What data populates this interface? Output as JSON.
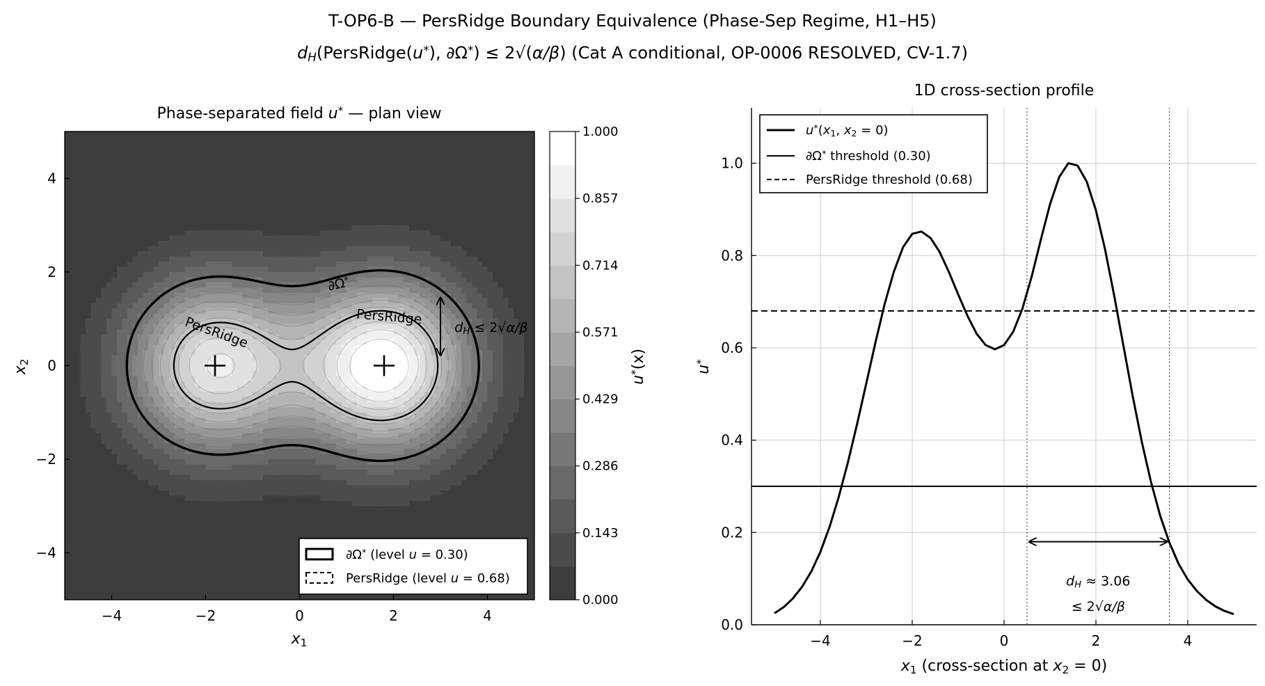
{
  "figure": {
    "title_line1": "T-OP6-B  —  PersRidge Boundary Equivalence (Phase-Sep Regime, H1–H5)",
    "title_line2": "dH(PersRidge(u*), ∂Ω*) ≤ 2√(α/β)   (Cat A conditional, OP-0006 RESOLVED, CV-1.7)"
  },
  "chart_data": [
    {
      "type": "heatmap",
      "title": "Phase-separated field u* — plan view",
      "xlabel": "x1",
      "ylabel": "x2",
      "xlim": [
        -5,
        5
      ],
      "ylim": [
        -5,
        5
      ],
      "xticks": [
        "−4",
        "−2",
        "0",
        "2",
        "4"
      ],
      "yticks": [
        "−4",
        "−2",
        "0",
        "2",
        "4"
      ],
      "colorbar": {
        "label": "u*(x)",
        "range": [
          0,
          1
        ],
        "ticks": [
          "0.000",
          "0.143",
          "0.286",
          "0.429",
          "0.571",
          "0.714",
          "0.857",
          "1.000"
        ],
        "levels": 14
      },
      "field": {
        "peaks": [
          {
            "x1": -1.8,
            "x2": 0,
            "amplitude": 0.85
          },
          {
            "x1": 1.8,
            "x2": 0,
            "amplitude": 1.0
          }
        ],
        "width": 1.3
      },
      "contours": [
        {
          "name": "∂Ω* (level u = 0.30)",
          "level": 0.3,
          "style": "solid",
          "label": "∂Ω*"
        },
        {
          "name": "PersRidge (level u = 0.68)",
          "level": 0.68,
          "style": "dashed",
          "label": "PersRidge"
        }
      ],
      "markers": [
        {
          "x1": -1.8,
          "x2": 0,
          "symbol": "+"
        },
        {
          "x1": 1.8,
          "x2": 0,
          "symbol": "+"
        }
      ],
      "annotation": {
        "text": "dH ≤ 2√(α/β)",
        "arrow_x1": 3.0,
        "arrow_from_x2": 1.45,
        "arrow_to_x2": 0.22
      },
      "legend_position": "lower-right",
      "colors": {
        "low": "#3c3c3c",
        "high": "#ffffff"
      }
    },
    {
      "type": "line",
      "title": "1D cross-section profile",
      "xlabel": "x1  (cross-section at x2 = 0)",
      "ylabel": "u*",
      "xlim": [
        -5.5,
        5.5
      ],
      "ylim": [
        0,
        1.12
      ],
      "xticks": [
        -4,
        -2,
        0,
        2,
        4
      ],
      "yticks": [
        0.0,
        0.2,
        0.4,
        0.6,
        0.8,
        1.0
      ],
      "grid": true,
      "series": [
        {
          "name": "u*(x1, x2 = 0)",
          "style": "solid-thick",
          "x": [
            -5.0,
            -4.8,
            -4.6,
            -4.4,
            -4.2,
            -4.0,
            -3.8,
            -3.6,
            -3.4,
            -3.2,
            -3.0,
            -2.8,
            -2.6,
            -2.4,
            -2.2,
            -2.0,
            -1.8,
            -1.6,
            -1.4,
            -1.2,
            -1.0,
            -0.8,
            -0.6,
            -0.4,
            -0.2,
            0.0,
            0.2,
            0.4,
            0.6,
            0.8,
            1.0,
            1.2,
            1.4,
            1.6,
            1.8,
            2.0,
            2.2,
            2.4,
            2.6,
            2.8,
            3.0,
            3.2,
            3.4,
            3.6,
            3.8,
            4.0,
            4.2,
            4.4,
            4.6,
            4.8,
            5.0
          ],
          "y": [
            0.025,
            0.038,
            0.057,
            0.082,
            0.115,
            0.158,
            0.212,
            0.277,
            0.352,
            0.435,
            0.523,
            0.612,
            0.695,
            0.765,
            0.818,
            0.847,
            0.852,
            0.838,
            0.807,
            0.764,
            0.716,
            0.67,
            0.631,
            0.606,
            0.597,
            0.606,
            0.635,
            0.685,
            0.754,
            0.834,
            0.911,
            0.97,
            1.0,
            0.995,
            0.96,
            0.898,
            0.813,
            0.712,
            0.604,
            0.496,
            0.396,
            0.309,
            0.236,
            0.178,
            0.132,
            0.098,
            0.073,
            0.054,
            0.04,
            0.03,
            0.023
          ]
        },
        {
          "name": "∂Ω* threshold (0.30)",
          "style": "solid",
          "y_const": 0.3
        },
        {
          "name": "PersRidge threshold (0.68)",
          "style": "dashed",
          "y_const": 0.68
        }
      ],
      "vlines": [
        0.5,
        3.6
      ],
      "annotation": {
        "text_line1": "dH ≈ 3.06",
        "text_line2": "≤ 2√(α/β)",
        "arrow_from_x1": 0.55,
        "arrow_to_x1": 3.55,
        "arrow_y": 0.18
      },
      "legend_position": "upper-left"
    }
  ]
}
